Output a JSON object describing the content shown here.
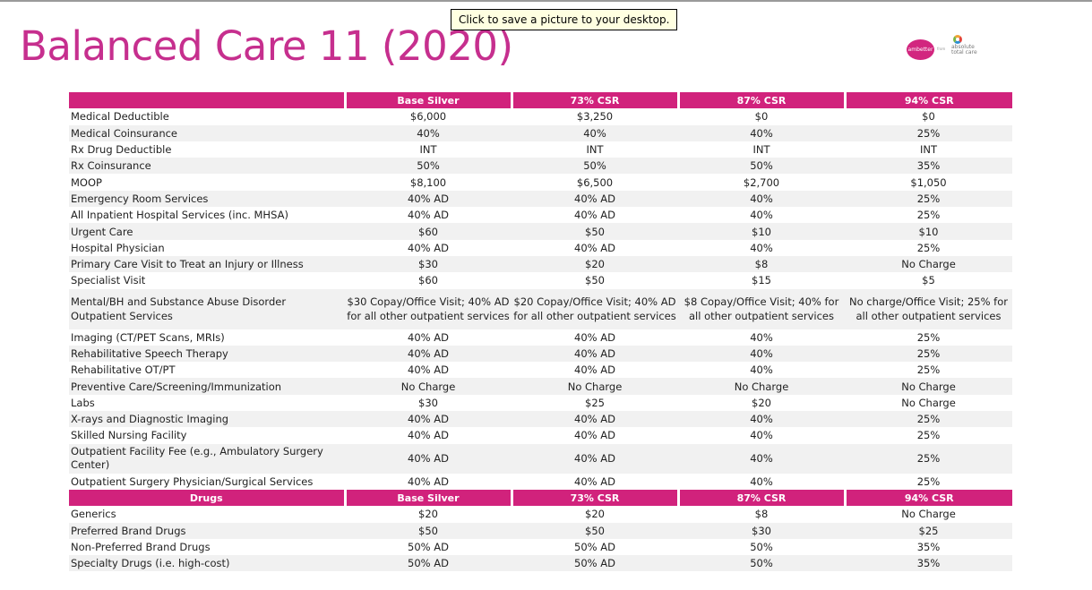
{
  "tooltip": "Click to save a picture to your desktop.",
  "title": "Balanced Care 11 (2020)",
  "logo": {
    "brand": "ambetter",
    "from": "from",
    "partner_line1": "absolute",
    "partner_line2": "total care"
  },
  "headers": [
    "",
    "Base Silver",
    "73% CSR",
    "87% CSR",
    "94% CSR"
  ],
  "rows": [
    {
      "label": "Medical Deductible",
      "values": [
        "$6,000",
        "$3,250",
        "$0",
        "$0"
      ]
    },
    {
      "label": "Medical Coinsurance",
      "values": [
        "40%",
        "40%",
        "40%",
        "25%"
      ]
    },
    {
      "label": "Rx Drug Deductible",
      "values": [
        "INT",
        "INT",
        "INT",
        "INT"
      ]
    },
    {
      "label": "Rx Coinsurance",
      "values": [
        "50%",
        "50%",
        "50%",
        "35%"
      ]
    },
    {
      "label": "MOOP",
      "values": [
        "$8,100",
        "$6,500",
        "$2,700",
        "$1,050"
      ]
    },
    {
      "label": "Emergency Room Services",
      "values": [
        "40% AD",
        "40% AD",
        "40%",
        "25%"
      ]
    },
    {
      "label": "All Inpatient Hospital Services (inc. MHSA)",
      "values": [
        "40% AD",
        "40% AD",
        "40%",
        "25%"
      ]
    },
    {
      "label": "Urgent Care",
      "values": [
        "$60",
        "$50",
        "$10",
        "$10"
      ]
    },
    {
      "label": "Hospital Physician",
      "values": [
        "40% AD",
        "40% AD",
        "40%",
        "25%"
      ]
    },
    {
      "label": "Primary Care Visit to Treat an Injury or Illness",
      "values": [
        "$30",
        "$20",
        "$8",
        "No Charge"
      ]
    },
    {
      "label": "Specialist Visit",
      "values": [
        "$60",
        "$50",
        "$15",
        "$5"
      ]
    },
    {
      "label": "Mental/BH and Substance Abuse Disorder Outpatient Services",
      "values": [
        "$30 Copay/Office Visit; 40%  AD for all other outpatient services",
        "$20 Copay/Office Visit; 40% AD for all other outpatient services",
        "$8 Copay/Office Visit; 40% for all other outpatient services",
        "No charge/Office Visit; 25% for all other outpatient services"
      ]
    },
    {
      "label": "Imaging (CT/PET Scans, MRIs)",
      "values": [
        "40% AD",
        "40% AD",
        "40%",
        "25%"
      ]
    },
    {
      "label": "Rehabilitative Speech Therapy",
      "values": [
        "40% AD",
        "40% AD",
        "40%",
        "25%"
      ]
    },
    {
      "label": "Rehabilitative OT/PT",
      "values": [
        "40% AD",
        "40% AD",
        "40%",
        "25%"
      ]
    },
    {
      "label": "Preventive Care/Screening/Immunization",
      "values": [
        "No Charge",
        "No Charge",
        "No Charge",
        "No Charge"
      ]
    },
    {
      "label": "Labs",
      "values": [
        "$30",
        "$25",
        "$20",
        "No Charge"
      ]
    },
    {
      "label": "X-rays and Diagnostic Imaging",
      "values": [
        "40% AD",
        "40% AD",
        "40%",
        "25%"
      ]
    },
    {
      "label": "Skilled Nursing Facility",
      "values": [
        "40% AD",
        "40% AD",
        "40%",
        "25%"
      ]
    },
    {
      "label": "Outpatient Facility Fee (e.g.,  Ambulatory Surgery Center)",
      "values": [
        "40% AD",
        "40% AD",
        "40%",
        "25%"
      ]
    },
    {
      "label": "Outpatient Surgery Physician/Surgical Services",
      "values": [
        "40% AD",
        "40% AD",
        "40%",
        "25%"
      ]
    }
  ],
  "drugs_headers": [
    "Drugs",
    "Base Silver",
    "73% CSR",
    "87% CSR",
    "94% CSR"
  ],
  "drugs_rows": [
    {
      "label": "Generics",
      "values": [
        "$20",
        "$20",
        "$8",
        "No Charge"
      ]
    },
    {
      "label": "Preferred Brand Drugs",
      "values": [
        "$50",
        "$50",
        "$30",
        "$25"
      ]
    },
    {
      "label": "Non-Preferred Brand Drugs",
      "values": [
        "50% AD",
        "50% AD",
        "50%",
        "35%"
      ]
    },
    {
      "label": "Specialty Drugs (i.e. high-cost)",
      "values": [
        "50% AD",
        "50% AD",
        "50%",
        "35%"
      ]
    }
  ],
  "colors": {
    "accent": "#d1227c",
    "title": "#c62f8e",
    "stripe": "#f1f1f1"
  }
}
